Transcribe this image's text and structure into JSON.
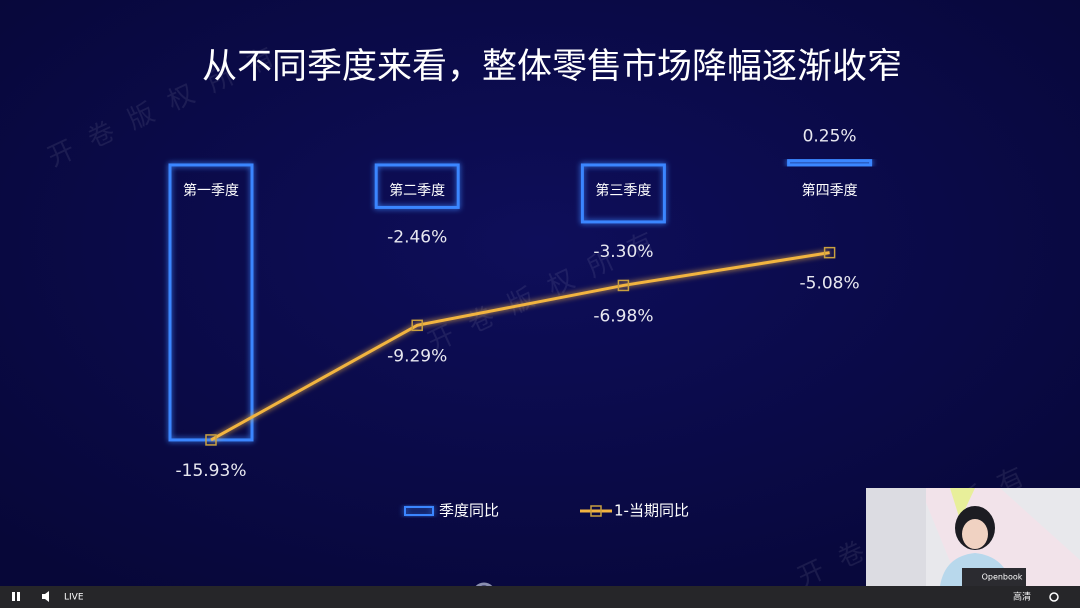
{
  "chart_data": {
    "type": "bar-line",
    "title": "从不同季度来看，整体零售市场降幅逐渐收窄",
    "categories": [
      "第一季度",
      "第二季度",
      "第三季度",
      "第四季度"
    ],
    "series": [
      {
        "name": "季度同比",
        "type": "bar",
        "color": "#3a86ff",
        "values": [
          -15.93,
          -2.46,
          -3.3,
          0.25
        ],
        "value_labels": [
          null,
          "-2.46%",
          "-3.30%",
          "0.25%"
        ]
      },
      {
        "name": "1-当期同比",
        "type": "line",
        "color": "#f2b441",
        "values": [
          -15.93,
          -9.29,
          -6.98,
          -5.08
        ],
        "value_labels": [
          "-15.93%",
          "-9.29%",
          "-6.98%",
          "-5.08%"
        ]
      }
    ],
    "ylim": [
      -17,
      1
    ],
    "legend": "bottom"
  },
  "watermark": "开卷版权所有",
  "player": {
    "live": "LIVE",
    "quality": "高清"
  },
  "webcam": {
    "laptop_label": "Openbook"
  }
}
